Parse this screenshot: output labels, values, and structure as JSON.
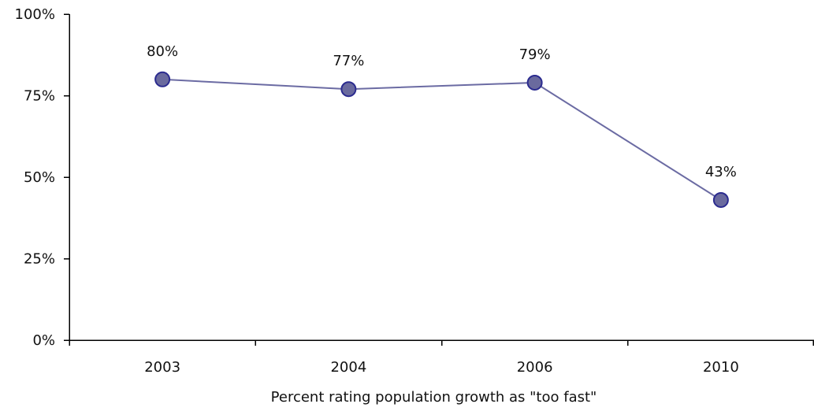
{
  "chart_data": {
    "type": "line",
    "title": "",
    "xlabel": "Percent rating population growth as \"too fast\"",
    "ylabel": "",
    "categories": [
      "2003",
      "2004",
      "2006",
      "2010"
    ],
    "series": [
      {
        "values": [
          80,
          77,
          79,
          43
        ],
        "data_labels": [
          "80%",
          "77%",
          "79%",
          "43%"
        ]
      }
    ],
    "ylim": [
      0,
      100
    ],
    "yticks": [
      0,
      25,
      50,
      75,
      100
    ],
    "ytick_labels": [
      "0%",
      "25%",
      "50%",
      "75%",
      "100%"
    ],
    "grid": false,
    "legend": "none",
    "colors": {
      "line": "#6b6ba3",
      "marker_fill": "#6a6a9e",
      "marker_stroke": "#2b2b8f",
      "axis": "#000000"
    }
  }
}
